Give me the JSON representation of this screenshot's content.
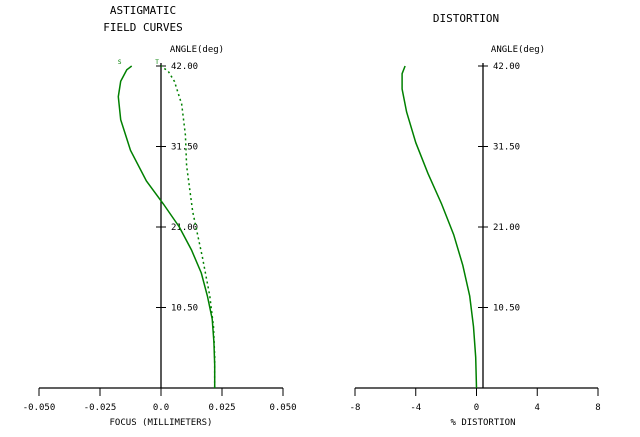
{
  "chart_data": [
    {
      "type": "line",
      "title": [
        "ASTIGMATIC",
        "FIELD CURVES"
      ],
      "xlabel": "FOCUS (MILLIMETERS)",
      "ylabel": "ANGLE(deg)",
      "xlim": [
        -0.05,
        0.05
      ],
      "ylim": [
        0,
        42
      ],
      "xticks": [
        "-0.050",
        "-0.025",
        "0.0",
        "0.025",
        "0.050"
      ],
      "xtick_values": [
        -0.05,
        -0.025,
        0,
        0.025,
        0.05
      ],
      "yticks": [
        "10.50",
        "21.00",
        "31.50",
        "42.00"
      ],
      "ytick_values": [
        10.5,
        21,
        31.5,
        42
      ],
      "curve_labels": [
        "S",
        "T"
      ],
      "series": [
        {
          "name": "S",
          "style": "solid",
          "color": "#008000",
          "points": [
            [
              0.022,
              0
            ],
            [
              0.022,
              3
            ],
            [
              0.0217,
              6
            ],
            [
              0.021,
              9
            ],
            [
              0.019,
              12
            ],
            [
              0.0165,
              15
            ],
            [
              0.0125,
              18
            ],
            [
              0.0075,
              21
            ],
            [
              0.001,
              24
            ],
            [
              -0.006,
              27
            ],
            [
              -0.0125,
              31
            ],
            [
              -0.0165,
              35
            ],
            [
              -0.0175,
              38
            ],
            [
              -0.0165,
              40
            ],
            [
              -0.014,
              41.5
            ],
            [
              -0.012,
              42
            ]
          ]
        },
        {
          "name": "T",
          "style": "dashed",
          "color": "#008000",
          "points": [
            [
              0.022,
              0
            ],
            [
              0.022,
              4
            ],
            [
              0.0215,
              8
            ],
            [
              0.02,
              12
            ],
            [
              0.017,
              17
            ],
            [
              0.013,
              23
            ],
            [
              0.0105,
              29
            ],
            [
              0.01,
              33
            ],
            [
              0.0085,
              37
            ],
            [
              0.0055,
              40
            ],
            [
              0.003,
              41.3
            ],
            [
              0,
              42
            ]
          ]
        }
      ]
    },
    {
      "type": "line",
      "title": "DISTORTION",
      "xlabel": "% DISTORTION",
      "ylabel": "ANGLE(deg)",
      "xlim": [
        -8,
        8
      ],
      "ylim": [
        0,
        42
      ],
      "xticks": [
        "-8",
        "-4",
        "0",
        "4",
        "8"
      ],
      "xtick_values": [
        -8,
        -4,
        0,
        4,
        8
      ],
      "yticks": [
        "10.50",
        "21.00",
        "31.50",
        "42.00"
      ],
      "ytick_values": [
        10.5,
        21,
        31.5,
        42
      ],
      "series": [
        {
          "style": "solid",
          "color": "#008000",
          "points": [
            [
              0,
              0
            ],
            [
              -0.05,
              4
            ],
            [
              -0.2,
              8
            ],
            [
              -0.45,
              12
            ],
            [
              -0.9,
              16
            ],
            [
              -1.5,
              20
            ],
            [
              -2.3,
              24
            ],
            [
              -3.2,
              28
            ],
            [
              -4.0,
              32
            ],
            [
              -4.6,
              36
            ],
            [
              -4.9,
              39
            ],
            [
              -4.9,
              41
            ],
            [
              -4.7,
              42
            ]
          ]
        }
      ]
    }
  ]
}
